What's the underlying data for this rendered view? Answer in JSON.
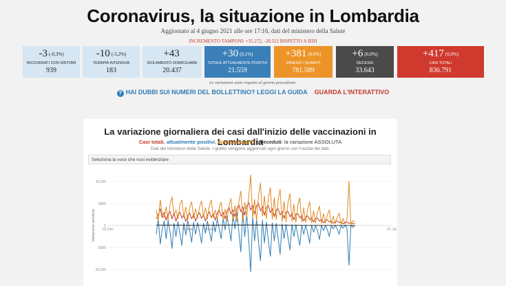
{
  "header": {
    "title": "Coronavirus, la situazione in Lombardia",
    "subtitle": "Aggiornato al 4 giugno 2021 alle ore 17:16, dati del ministero della Salute",
    "delta": "INCREMENTO TAMPONI: +35.272, -20.522 RISPETTO A IERI"
  },
  "cards": [
    {
      "value": "-3",
      "pct": "(-0,3%)",
      "label": "RICOVERATI CON SINTOMI",
      "total": "939",
      "bg": "#d6e6f3",
      "fg": "#222"
    },
    {
      "value": "-10",
      "pct": "(-5,2%)",
      "label": "TERAPIA INTENSIVA",
      "total": "183",
      "bg": "#d6e6f3",
      "fg": "#222"
    },
    {
      "value": "+43",
      "pct": "",
      "label": "ISOLAMENTO DOMICILIARE",
      "total": "20.437",
      "bg": "#d6e6f3",
      "fg": "#222"
    },
    {
      "value": "+30",
      "pct": "(0,1%)",
      "label": "TOTALE ATTUALMENTE POSITIVI",
      "total": "21.559",
      "bg": "#3b7fb8",
      "fg": "#fff"
    },
    {
      "value": "+381",
      "pct": "(0,0%)",
      "label": "DIMESSI / GUARITI",
      "total": "781.589",
      "bg": "#ec9428",
      "fg": "#fff"
    },
    {
      "value": "+6",
      "pct": "(0,0%)",
      "label": "DECESSI",
      "total": "33.643",
      "bg": "#4a4a4a",
      "fg": "#fff"
    },
    {
      "value": "+417",
      "pct": "(0,0%)",
      "label": "CASI TOTALI",
      "total": "836.791",
      "bg": "#d0392d",
      "fg": "#fff"
    }
  ],
  "note": "Le variazioni sono rispetto al giorno precedente.",
  "links": {
    "guide": "HAI DUBBI SUI NUMERI DEL BOLLETTINO? LEGGI LA GUIDA",
    "interactive": "GUARDA L'INTERATTIVO"
  },
  "chart_panel": {
    "title": "La variazione giornaliera dei casi dall'inizio delle vaccinazioni in Lombardia",
    "legend": {
      "casi_totali": "Casi totali",
      "positivi": "attualmente positivi",
      "dimessi": "dimessi/guariti",
      "deceduti": "deceduti",
      "suffix": ": la variazione ASSOLUTA"
    },
    "source": "Dati del ministero della Salute. I grafici vengono aggiornati ogni giorno con l'uscita dei dati.",
    "select_placeholder": "Seleziona la voce che vuoi evidenziare"
  },
  "chart_data": {
    "type": "line",
    "ylabel": "Variazione assoluta",
    "ylim": [
      -12000,
      12000
    ],
    "yticks": [
      "10.000",
      "5000",
      "0",
      "-5000",
      "-10.000"
    ],
    "ytick_values": [
      10000,
      5000,
      0,
      -5000,
      -10000
    ],
    "xticks": [
      "01 Dec",
      "01 Mar",
      "01 Apr",
      "01 Jul"
    ],
    "colors": {
      "casi_totali": "#c0392b",
      "positivi": "#2e7bb4",
      "dimessi": "#e08a1e",
      "deceduti": "#333333"
    },
    "series": [
      {
        "name": "Casi totali",
        "color": "#c0392b",
        "values": [
          1500,
          2500,
          3800,
          1800,
          3000,
          1200,
          2600,
          3200,
          1500,
          2800,
          1000,
          2400,
          3000,
          1700,
          2500,
          900,
          2200,
          2800,
          1500,
          2600,
          1000,
          2300,
          2900,
          1600,
          2500,
          1000,
          2400,
          3100,
          1800,
          2700,
          1200,
          2800,
          3500,
          2100,
          3000,
          1500,
          3300,
          4100,
          2600,
          3600,
          2000,
          3900,
          4700,
          3100,
          4200,
          2400,
          4400,
          5200,
          3500,
          4600,
          2600,
          4500,
          5000,
          3300,
          4300,
          2300,
          4100,
          4500,
          2900,
          3800,
          2000,
          3500,
          3800,
          2400,
          3200,
          1600,
          3000,
          3200,
          2000,
          2700,
          1300,
          2500,
          2700,
          1700,
          2200,
          1000,
          2000,
          2200,
          1300,
          1800,
          800,
          1600,
          1700,
          1000,
          1400,
          600,
          1200,
          1300,
          800,
          1000,
          500,
          900,
          1000,
          700,
          800,
          400,
          700,
          800,
          500,
          600,
          400,
          500
        ]
      },
      {
        "name": "attualmente positivi",
        "color": "#2e7bb4",
        "values": [
          -2000,
          1500,
          -4200,
          -800,
          1000,
          -3000,
          1200,
          -1500,
          -5200,
          500,
          -2500,
          900,
          -1800,
          -4500,
          600,
          -2200,
          1100,
          -1200,
          -3800,
          800,
          -2000,
          700,
          -1500,
          -4000,
          500,
          -1800,
          1000,
          -1300,
          -3600,
          900,
          -1500,
          1500,
          -800,
          -3000,
          1700,
          -1000,
          2200,
          -500,
          -3500,
          2600,
          -800,
          3000,
          -1500,
          -6000,
          3200,
          -2500,
          2500,
          -3000,
          -10500,
          2000,
          -3500,
          1500,
          -3800,
          -8000,
          1200,
          -4000,
          800,
          -3500,
          -7000,
          600,
          -3500,
          500,
          -3000,
          -6500,
          400,
          -3000,
          300,
          -2800,
          -5500,
          200,
          -2500,
          200,
          -2200,
          -4500,
          100,
          -2000,
          100,
          -1800,
          -4000,
          100,
          -1500,
          0,
          -1200,
          -3200,
          0,
          -1200,
          0,
          -1000,
          -2500,
          0,
          -800,
          0,
          -700,
          -2000,
          0,
          -600,
          0,
          -500,
          -9000,
          0,
          -400,
          0
        ]
      },
      {
        "name": "dimessi/guariti",
        "color": "#e08a1e",
        "values": [
          3500,
          1000,
          5800,
          2500,
          1800,
          4200,
          1300,
          4700,
          6500,
          2200,
          3500,
          1500,
          4800,
          5800,
          1800,
          4200,
          1200,
          4000,
          5400,
          1700,
          3800,
          1600,
          4200,
          5600,
          2000,
          4000,
          1400,
          4500,
          5800,
          1800,
          3500,
          1300,
          4000,
          5300,
          1300,
          3700,
          1100,
          4600,
          6100,
          1000,
          4500,
          900,
          5400,
          7800,
          900,
          5200,
          2000,
          6300,
          11500,
          1500,
          5900,
          1000,
          6800,
          9600,
          2100,
          6700,
          1500,
          6300,
          8600,
          1400,
          6300,
          1300,
          5800,
          8200,
          900,
          5500,
          800,
          5300,
          7300,
          900,
          4800,
          700,
          4500,
          6300,
          800,
          4000,
          700,
          3800,
          5400,
          600,
          3300,
          600,
          3000,
          4400,
          500,
          2700,
          500,
          2400,
          3500,
          400,
          2100,
          400,
          1800,
          2800,
          300,
          1600,
          300,
          1300,
          10000,
          200,
          1100,
          800
        ]
      },
      {
        "name": "deceduti",
        "color": "#333333",
        "values": [
          80,
          90,
          100,
          70,
          90,
          60,
          80,
          100,
          70,
          90,
          60,
          80,
          90,
          70,
          80,
          60,
          70,
          80,
          60,
          70,
          50,
          70,
          80,
          60,
          70,
          50,
          70,
          90,
          60,
          80,
          60,
          80,
          100,
          70,
          90,
          70,
          100,
          120,
          80,
          110,
          80,
          120,
          140,
          90,
          130,
          90,
          140,
          150,
          100,
          140,
          90,
          130,
          140,
          90,
          120,
          80,
          110,
          120,
          80,
          100,
          70,
          90,
          100,
          60,
          80,
          50,
          70,
          80,
          50,
          60,
          40,
          50,
          60,
          40,
          50,
          30,
          40,
          50,
          30,
          40,
          20,
          30,
          40,
          20,
          30,
          20,
          20,
          30,
          20,
          20,
          10,
          20,
          20,
          10,
          20,
          10,
          10,
          20,
          10,
          10,
          10,
          10
        ]
      }
    ]
  }
}
